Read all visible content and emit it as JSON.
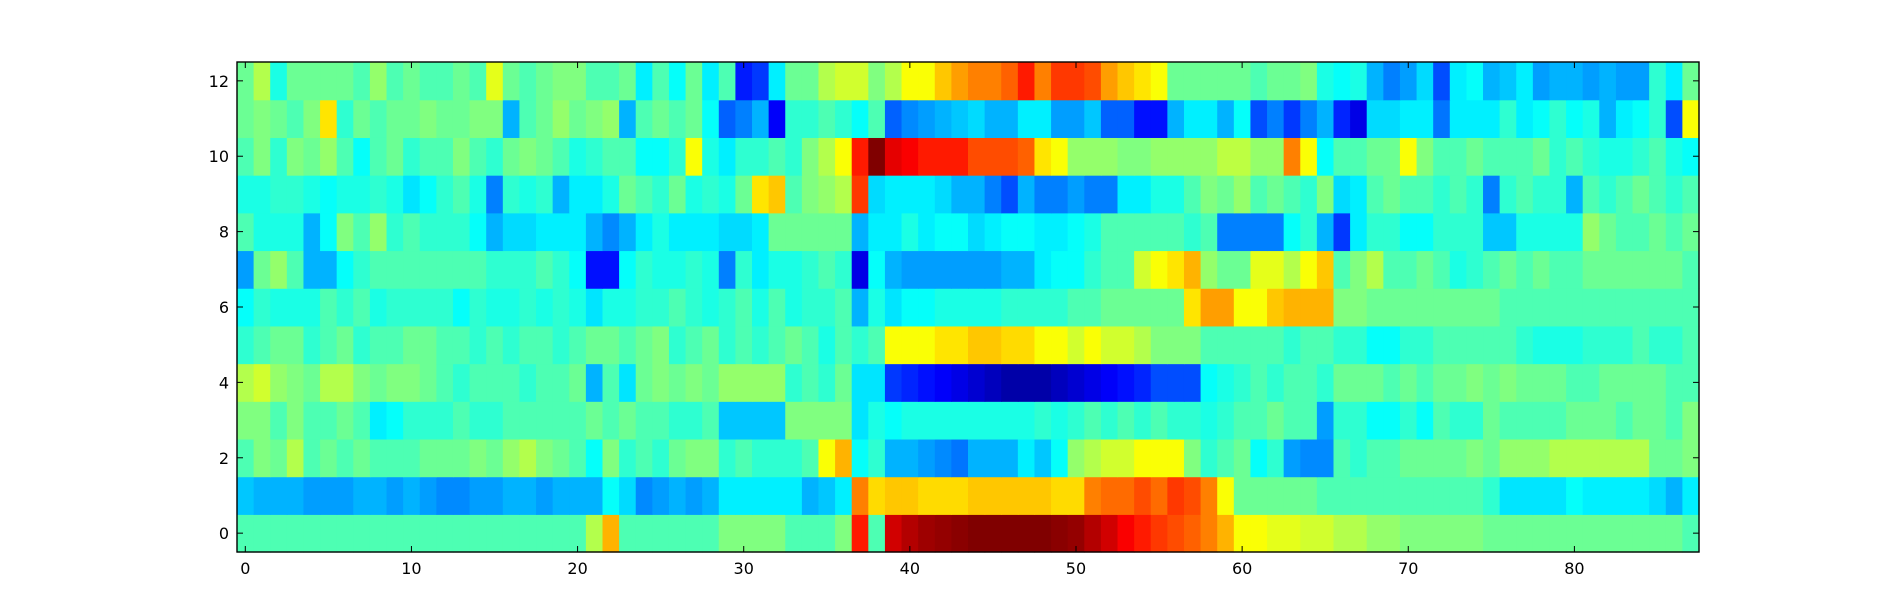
{
  "chart_data": {
    "type": "heatmap",
    "title": "",
    "xlabel": "",
    "ylabel": "",
    "colormap": "jet",
    "value_range": [
      0,
      1
    ],
    "x_range": [
      -0.5,
      87.5
    ],
    "y_range": [
      -0.5,
      12.5
    ],
    "x_ticks": [
      0,
      10,
      20,
      30,
      40,
      50,
      60,
      70,
      80
    ],
    "y_ticks": [
      0,
      2,
      4,
      6,
      8,
      10,
      12
    ],
    "n_cols": 88,
    "n_rows": 13,
    "rows": [
      [
        0.45,
        0.45,
        0.45,
        0.45,
        0.45,
        0.45,
        0.45,
        0.45,
        0.45,
        0.45,
        0.45,
        0.45,
        0.45,
        0.45,
        0.45,
        0.45,
        0.45,
        0.45,
        0.45,
        0.45,
        0.45,
        0.55,
        0.7,
        0.45,
        0.45,
        0.45,
        0.45,
        0.45,
        0.45,
        0.5,
        0.5,
        0.5,
        0.5,
        0.45,
        0.45,
        0.45,
        0.5,
        0.85,
        0.45,
        0.92,
        0.95,
        0.97,
        0.98,
        0.99,
        1.0,
        1.0,
        1.0,
        1.0,
        1.0,
        0.99,
        0.98,
        0.95,
        0.92,
        0.88,
        0.85,
        0.82,
        0.8,
        0.78,
        0.75,
        0.7,
        0.62,
        0.62,
        0.6,
        0.6,
        0.58,
        0.58,
        0.55,
        0.55,
        0.52,
        0.52,
        0.5,
        0.5,
        0.5,
        0.5,
        0.5,
        0.48,
        0.48,
        0.48,
        0.48,
        0.48,
        0.48,
        0.48,
        0.48,
        0.48,
        0.48,
        0.48,
        0.48,
        0.45
      ],
      [
        0.32,
        0.3,
        0.3,
        0.3,
        0.28,
        0.28,
        0.28,
        0.3,
        0.3,
        0.28,
        0.3,
        0.28,
        0.26,
        0.26,
        0.28,
        0.28,
        0.3,
        0.3,
        0.28,
        0.3,
        0.3,
        0.3,
        0.38,
        0.34,
        0.26,
        0.28,
        0.3,
        0.28,
        0.3,
        0.36,
        0.36,
        0.36,
        0.36,
        0.36,
        0.3,
        0.32,
        0.36,
        0.75,
        0.66,
        0.68,
        0.68,
        0.66,
        0.66,
        0.66,
        0.68,
        0.68,
        0.68,
        0.68,
        0.68,
        0.66,
        0.66,
        0.75,
        0.77,
        0.77,
        0.8,
        0.77,
        0.82,
        0.8,
        0.75,
        0.62,
        0.48,
        0.48,
        0.48,
        0.48,
        0.48,
        0.45,
        0.45,
        0.45,
        0.45,
        0.45,
        0.45,
        0.45,
        0.45,
        0.45,
        0.45,
        0.42,
        0.35,
        0.35,
        0.35,
        0.35,
        0.38,
        0.36,
        0.36,
        0.36,
        0.36,
        0.34,
        0.3,
        0.36
      ],
      [
        0.45,
        0.5,
        0.48,
        0.55,
        0.45,
        0.48,
        0.45,
        0.48,
        0.45,
        0.45,
        0.45,
        0.48,
        0.48,
        0.48,
        0.5,
        0.48,
        0.52,
        0.55,
        0.5,
        0.48,
        0.45,
        0.38,
        0.5,
        0.42,
        0.45,
        0.42,
        0.48,
        0.5,
        0.5,
        0.42,
        0.45,
        0.42,
        0.42,
        0.42,
        0.45,
        0.62,
        0.7,
        0.38,
        0.42,
        0.3,
        0.3,
        0.28,
        0.26,
        0.24,
        0.3,
        0.3,
        0.3,
        0.36,
        0.32,
        0.38,
        0.52,
        0.55,
        0.58,
        0.58,
        0.62,
        0.62,
        0.62,
        0.5,
        0.42,
        0.45,
        0.48,
        0.38,
        0.42,
        0.28,
        0.26,
        0.26,
        0.45,
        0.42,
        0.45,
        0.45,
        0.48,
        0.48,
        0.48,
        0.48,
        0.5,
        0.48,
        0.52,
        0.52,
        0.52,
        0.55,
        0.55,
        0.55,
        0.55,
        0.55,
        0.55,
        0.48,
        0.48,
        0.5
      ],
      [
        0.5,
        0.5,
        0.45,
        0.5,
        0.45,
        0.45,
        0.48,
        0.45,
        0.36,
        0.38,
        0.42,
        0.42,
        0.42,
        0.45,
        0.42,
        0.42,
        0.45,
        0.45,
        0.45,
        0.45,
        0.45,
        0.48,
        0.45,
        0.48,
        0.45,
        0.45,
        0.42,
        0.42,
        0.45,
        0.32,
        0.32,
        0.32,
        0.32,
        0.5,
        0.5,
        0.5,
        0.5,
        0.35,
        0.4,
        0.38,
        0.4,
        0.4,
        0.4,
        0.4,
        0.4,
        0.4,
        0.4,
        0.4,
        0.42,
        0.4,
        0.42,
        0.45,
        0.42,
        0.45,
        0.42,
        0.45,
        0.42,
        0.42,
        0.4,
        0.42,
        0.45,
        0.45,
        0.48,
        0.45,
        0.45,
        0.28,
        0.42,
        0.42,
        0.38,
        0.38,
        0.42,
        0.38,
        0.45,
        0.42,
        0.42,
        0.48,
        0.45,
        0.45,
        0.45,
        0.45,
        0.48,
        0.48,
        0.48,
        0.45,
        0.48,
        0.48,
        0.45,
        0.5
      ],
      [
        0.55,
        0.58,
        0.52,
        0.5,
        0.48,
        0.55,
        0.55,
        0.5,
        0.48,
        0.5,
        0.5,
        0.48,
        0.45,
        0.42,
        0.45,
        0.45,
        0.45,
        0.42,
        0.45,
        0.45,
        0.48,
        0.3,
        0.45,
        0.35,
        0.48,
        0.5,
        0.48,
        0.5,
        0.48,
        0.52,
        0.52,
        0.52,
        0.52,
        0.42,
        0.45,
        0.42,
        0.48,
        0.35,
        0.35,
        0.18,
        0.16,
        0.14,
        0.12,
        0.1,
        0.08,
        0.06,
        0.04,
        0.04,
        0.04,
        0.06,
        0.08,
        0.1,
        0.12,
        0.14,
        0.16,
        0.2,
        0.2,
        0.2,
        0.38,
        0.4,
        0.42,
        0.45,
        0.42,
        0.45,
        0.45,
        0.42,
        0.48,
        0.48,
        0.48,
        0.45,
        0.48,
        0.45,
        0.48,
        0.48,
        0.5,
        0.48,
        0.5,
        0.48,
        0.48,
        0.48,
        0.45,
        0.45,
        0.48,
        0.48,
        0.48,
        0.48,
        0.45,
        0.45
      ],
      [
        0.42,
        0.45,
        0.48,
        0.48,
        0.42,
        0.45,
        0.48,
        0.42,
        0.45,
        0.45,
        0.48,
        0.48,
        0.45,
        0.45,
        0.42,
        0.45,
        0.42,
        0.45,
        0.45,
        0.42,
        0.45,
        0.48,
        0.48,
        0.45,
        0.48,
        0.5,
        0.42,
        0.45,
        0.48,
        0.42,
        0.45,
        0.42,
        0.45,
        0.48,
        0.45,
        0.4,
        0.45,
        0.42,
        0.45,
        0.62,
        0.62,
        0.62,
        0.65,
        0.65,
        0.68,
        0.68,
        0.66,
        0.66,
        0.62,
        0.62,
        0.58,
        0.62,
        0.58,
        0.58,
        0.55,
        0.5,
        0.5,
        0.5,
        0.45,
        0.45,
        0.45,
        0.45,
        0.45,
        0.42,
        0.45,
        0.45,
        0.42,
        0.42,
        0.38,
        0.38,
        0.42,
        0.42,
        0.45,
        0.45,
        0.45,
        0.45,
        0.45,
        0.42,
        0.4,
        0.4,
        0.4,
        0.42,
        0.42,
        0.42,
        0.45,
        0.42,
        0.42,
        0.45
      ],
      [
        0.38,
        0.42,
        0.4,
        0.4,
        0.4,
        0.45,
        0.42,
        0.45,
        0.4,
        0.42,
        0.42,
        0.42,
        0.42,
        0.38,
        0.42,
        0.4,
        0.4,
        0.42,
        0.4,
        0.42,
        0.4,
        0.35,
        0.4,
        0.4,
        0.42,
        0.42,
        0.45,
        0.42,
        0.4,
        0.42,
        0.45,
        0.4,
        0.45,
        0.4,
        0.42,
        0.42,
        0.45,
        0.3,
        0.4,
        0.35,
        0.38,
        0.38,
        0.4,
        0.4,
        0.4,
        0.4,
        0.42,
        0.42,
        0.42,
        0.42,
        0.45,
        0.45,
        0.48,
        0.48,
        0.48,
        0.48,
        0.48,
        0.65,
        0.72,
        0.72,
        0.62,
        0.62,
        0.68,
        0.7,
        0.7,
        0.7,
        0.5,
        0.5,
        0.48,
        0.48,
        0.48,
        0.48,
        0.48,
        0.48,
        0.48,
        0.48,
        0.45,
        0.45,
        0.45,
        0.45,
        0.45,
        0.45,
        0.45,
        0.45,
        0.45,
        0.45,
        0.45,
        0.45
      ],
      [
        0.28,
        0.48,
        0.52,
        0.45,
        0.3,
        0.3,
        0.38,
        0.42,
        0.45,
        0.45,
        0.45,
        0.45,
        0.45,
        0.45,
        0.45,
        0.42,
        0.42,
        0.42,
        0.45,
        0.42,
        0.38,
        0.14,
        0.14,
        0.38,
        0.42,
        0.4,
        0.4,
        0.42,
        0.4,
        0.25,
        0.42,
        0.36,
        0.4,
        0.4,
        0.42,
        0.45,
        0.42,
        0.1,
        0.38,
        0.3,
        0.28,
        0.28,
        0.28,
        0.28,
        0.28,
        0.28,
        0.3,
        0.3,
        0.36,
        0.38,
        0.38,
        0.42,
        0.45,
        0.45,
        0.58,
        0.62,
        0.65,
        0.7,
        0.52,
        0.48,
        0.48,
        0.6,
        0.6,
        0.55,
        0.62,
        0.68,
        0.45,
        0.5,
        0.55,
        0.45,
        0.45,
        0.48,
        0.45,
        0.4,
        0.42,
        0.45,
        0.48,
        0.45,
        0.48,
        0.45,
        0.45,
        0.48,
        0.48,
        0.48,
        0.48,
        0.48,
        0.48,
        0.45
      ],
      [
        0.45,
        0.4,
        0.4,
        0.4,
        0.3,
        0.38,
        0.5,
        0.45,
        0.52,
        0.42,
        0.45,
        0.42,
        0.42,
        0.42,
        0.38,
        0.3,
        0.34,
        0.34,
        0.36,
        0.36,
        0.36,
        0.3,
        0.26,
        0.3,
        0.36,
        0.4,
        0.36,
        0.36,
        0.36,
        0.34,
        0.34,
        0.36,
        0.48,
        0.48,
        0.48,
        0.48,
        0.48,
        0.3,
        0.36,
        0.36,
        0.4,
        0.36,
        0.38,
        0.38,
        0.34,
        0.36,
        0.38,
        0.38,
        0.36,
        0.36,
        0.38,
        0.4,
        0.45,
        0.45,
        0.45,
        0.45,
        0.45,
        0.42,
        0.45,
        0.25,
        0.25,
        0.25,
        0.25,
        0.38,
        0.42,
        0.3,
        0.18,
        0.36,
        0.42,
        0.42,
        0.38,
        0.38,
        0.42,
        0.42,
        0.42,
        0.32,
        0.32,
        0.4,
        0.4,
        0.4,
        0.4,
        0.52,
        0.48,
        0.45,
        0.45,
        0.48,
        0.45,
        0.48
      ],
      [
        0.4,
        0.4,
        0.42,
        0.42,
        0.4,
        0.38,
        0.4,
        0.4,
        0.42,
        0.4,
        0.35,
        0.38,
        0.42,
        0.45,
        0.4,
        0.25,
        0.42,
        0.4,
        0.42,
        0.3,
        0.36,
        0.36,
        0.4,
        0.48,
        0.45,
        0.42,
        0.48,
        0.4,
        0.42,
        0.4,
        0.48,
        0.65,
        0.68,
        0.45,
        0.5,
        0.52,
        0.55,
        0.82,
        0.34,
        0.36,
        0.36,
        0.36,
        0.34,
        0.3,
        0.3,
        0.25,
        0.2,
        0.3,
        0.25,
        0.25,
        0.28,
        0.25,
        0.25,
        0.36,
        0.36,
        0.4,
        0.4,
        0.45,
        0.5,
        0.48,
        0.52,
        0.45,
        0.48,
        0.45,
        0.42,
        0.5,
        0.34,
        0.36,
        0.45,
        0.48,
        0.45,
        0.45,
        0.42,
        0.45,
        0.42,
        0.25,
        0.42,
        0.45,
        0.42,
        0.42,
        0.3,
        0.45,
        0.42,
        0.45,
        0.48,
        0.45,
        0.42,
        0.45
      ],
      [
        0.45,
        0.5,
        0.42,
        0.5,
        0.48,
        0.52,
        0.45,
        0.38,
        0.45,
        0.48,
        0.42,
        0.45,
        0.45,
        0.5,
        0.45,
        0.42,
        0.48,
        0.5,
        0.48,
        0.45,
        0.4,
        0.42,
        0.45,
        0.45,
        0.38,
        0.38,
        0.42,
        0.62,
        0.4,
        0.36,
        0.42,
        0.42,
        0.45,
        0.42,
        0.5,
        0.55,
        0.62,
        0.85,
        1.0,
        0.9,
        0.88,
        0.85,
        0.85,
        0.85,
        0.8,
        0.8,
        0.8,
        0.78,
        0.65,
        0.62,
        0.52,
        0.52,
        0.52,
        0.5,
        0.5,
        0.52,
        0.52,
        0.52,
        0.52,
        0.56,
        0.56,
        0.52,
        0.52,
        0.75,
        0.62,
        0.38,
        0.45,
        0.45,
        0.48,
        0.48,
        0.62,
        0.5,
        0.45,
        0.45,
        0.48,
        0.45,
        0.45,
        0.45,
        0.48,
        0.42,
        0.45,
        0.42,
        0.4,
        0.4,
        0.42,
        0.45,
        0.4,
        0.38
      ],
      [
        0.48,
        0.5,
        0.48,
        0.45,
        0.5,
        0.65,
        0.42,
        0.48,
        0.45,
        0.48,
        0.48,
        0.5,
        0.48,
        0.48,
        0.5,
        0.5,
        0.3,
        0.45,
        0.48,
        0.52,
        0.48,
        0.5,
        0.52,
        0.3,
        0.45,
        0.48,
        0.45,
        0.48,
        0.38,
        0.22,
        0.25,
        0.3,
        0.12,
        0.42,
        0.42,
        0.45,
        0.42,
        0.38,
        0.45,
        0.22,
        0.26,
        0.28,
        0.3,
        0.32,
        0.34,
        0.3,
        0.3,
        0.36,
        0.36,
        0.28,
        0.28,
        0.32,
        0.22,
        0.22,
        0.14,
        0.14,
        0.3,
        0.36,
        0.36,
        0.3,
        0.38,
        0.2,
        0.25,
        0.18,
        0.25,
        0.3,
        0.16,
        0.1,
        0.34,
        0.34,
        0.36,
        0.36,
        0.24,
        0.36,
        0.36,
        0.36,
        0.42,
        0.36,
        0.38,
        0.42,
        0.38,
        0.4,
        0.3,
        0.36,
        0.38,
        0.42,
        0.2,
        0.62
      ],
      [
        0.48,
        0.55,
        0.4,
        0.48,
        0.48,
        0.48,
        0.48,
        0.45,
        0.52,
        0.45,
        0.48,
        0.45,
        0.45,
        0.48,
        0.45,
        0.6,
        0.48,
        0.45,
        0.48,
        0.5,
        0.5,
        0.45,
        0.45,
        0.48,
        0.36,
        0.45,
        0.38,
        0.48,
        0.36,
        0.45,
        0.15,
        0.18,
        0.36,
        0.48,
        0.48,
        0.55,
        0.58,
        0.58,
        0.5,
        0.55,
        0.62,
        0.62,
        0.68,
        0.72,
        0.75,
        0.75,
        0.78,
        0.85,
        0.75,
        0.82,
        0.82,
        0.8,
        0.72,
        0.68,
        0.65,
        0.62,
        0.48,
        0.48,
        0.48,
        0.48,
        0.48,
        0.45,
        0.48,
        0.48,
        0.5,
        0.4,
        0.38,
        0.4,
        0.3,
        0.25,
        0.28,
        0.34,
        0.2,
        0.36,
        0.38,
        0.3,
        0.32,
        0.36,
        0.28,
        0.3,
        0.3,
        0.28,
        0.3,
        0.28,
        0.28,
        0.42,
        0.36,
        0.48
      ]
    ]
  }
}
